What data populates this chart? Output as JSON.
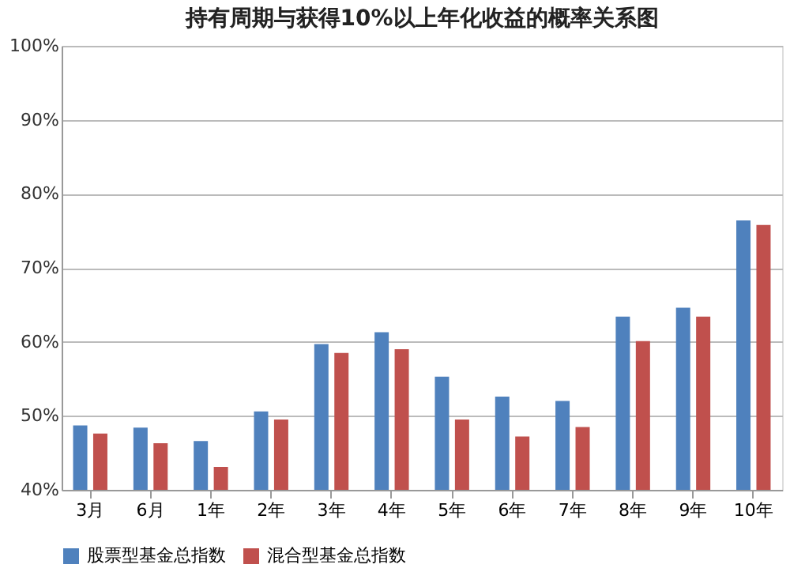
{
  "chart_data": {
    "type": "bar",
    "title": "持有周期与获得10%以上年化收益的概率关系图",
    "categories": [
      "3月",
      "6月",
      "1年",
      "2年",
      "3年",
      "4年",
      "5年",
      "6年",
      "7年",
      "8年",
      "9年",
      "10年"
    ],
    "series": [
      {
        "name": "股票型基金总指数",
        "color": "#4f81bd",
        "values": [
          48.7,
          48.4,
          46.6,
          50.6,
          59.7,
          61.3,
          55.3,
          52.6,
          52.0,
          63.4,
          64.6,
          76.4
        ]
      },
      {
        "name": "混合型基金总指数",
        "color": "#c0504d",
        "values": [
          47.6,
          46.3,
          43.1,
          49.5,
          58.5,
          59.0,
          49.5,
          47.2,
          48.5,
          60.1,
          63.4,
          75.8
        ]
      }
    ],
    "ylim": [
      40,
      100
    ],
    "yticks": [
      {
        "value": 40,
        "label": "40%"
      },
      {
        "value": 50,
        "label": "50%"
      },
      {
        "value": 60,
        "label": "60%"
      },
      {
        "value": 70,
        "label": "70%"
      },
      {
        "value": 80,
        "label": "80%"
      },
      {
        "value": 90,
        "label": "90%"
      },
      {
        "value": 100,
        "label": "100%"
      }
    ],
    "grid": "y",
    "legend": "bottom"
  }
}
